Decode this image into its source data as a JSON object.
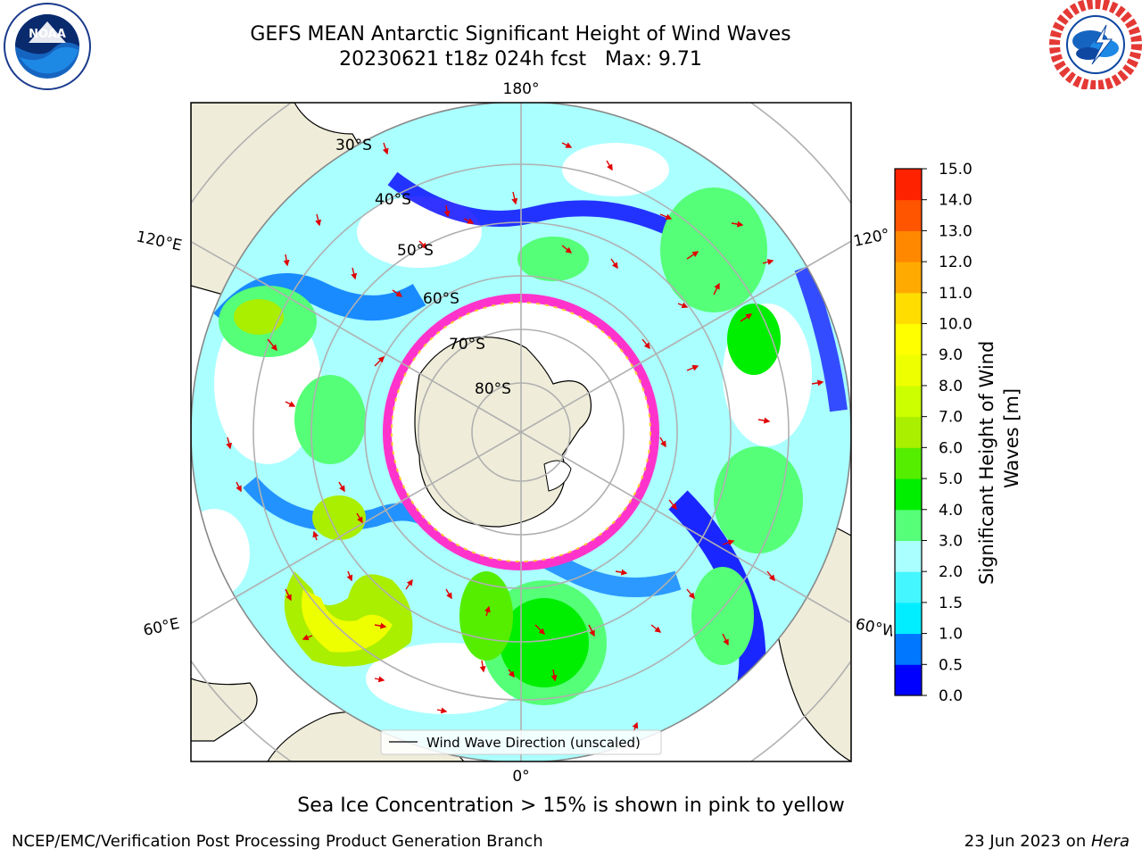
{
  "header": {
    "title": "GEFS MEAN Antarctic Significant Height of Wind Waves",
    "subtitle": "20230621 t18z 024h fcst   Max: 9.71"
  },
  "logos": {
    "noaa": {
      "text": "NOAA",
      "ring_text": "NATIONAL OCEANIC AND ATMOSPHERIC ADMINISTRATION · U.S. DEPARTMENT OF COMMERCE"
    },
    "nws": {
      "ring_text": "NATIONAL WEATHER SERVICE"
    }
  },
  "map": {
    "longitude_labels": {
      "top": "180°",
      "bottom": "0°",
      "left_upper": "120°E",
      "left_lower": "60°E",
      "right_upper": "120°",
      "right_lower": "60°W"
    },
    "latitude_labels": [
      "30°S",
      "40°S",
      "50°S",
      "60°S",
      "70°S",
      "80°S"
    ],
    "legend": "Wind Wave Direction (unscaled)",
    "colors": {
      "land": "#efedd9",
      "sea_ice_edge": "#ff33cc",
      "arrow": "#e00000"
    }
  },
  "colorbar": {
    "label_line1": "Significant Height of Wind",
    "label_line2": "Waves [m]",
    "ticks": [
      "0.0",
      "0.5",
      "1.0",
      "1.5",
      "2.0",
      "3.0",
      "4.0",
      "5.0",
      "6.0",
      "7.0",
      "8.0",
      "9.0",
      "10.0",
      "11.0",
      "12.0",
      "13.0",
      "14.0",
      "15.0"
    ],
    "colors": [
      "#0000ff",
      "#0077ff",
      "#00eeff",
      "#44f6ff",
      "#aaffff",
      "#55ff77",
      "#00ee00",
      "#55ee00",
      "#aaee00",
      "#ccff00",
      "#eeff00",
      "#ffff00",
      "#ffdd00",
      "#ffaa00",
      "#ff8800",
      "#ff5500",
      "#ff2200"
    ]
  },
  "caption": "Sea Ice Concentration > 15% is shown in pink to yellow",
  "footer": {
    "left": "NCEP/EMC/Verification Post Processing Product Generation Branch",
    "right_prefix": "23 Jun 2023 on ",
    "right_host": "Hera"
  }
}
